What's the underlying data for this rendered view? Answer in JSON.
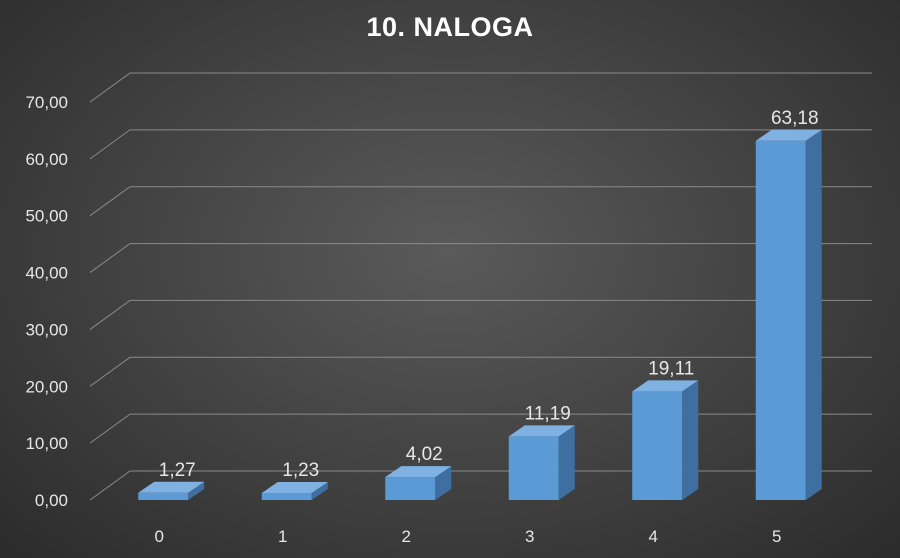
{
  "chart_data": {
    "type": "bar",
    "title": "10. NALOGA",
    "categories": [
      "0",
      "1",
      "2",
      "3",
      "4",
      "5"
    ],
    "values": [
      1.27,
      1.23,
      4.02,
      11.19,
      19.11,
      63.18
    ],
    "value_labels": [
      "1,27",
      "1,23",
      "4,02",
      "11,19",
      "19,11",
      "63,18"
    ],
    "y_ticks": [
      "0,00",
      "10,00",
      "20,00",
      "30,00",
      "40,00",
      "50,00",
      "60,00",
      "70,00"
    ],
    "ylim": [
      0,
      70
    ],
    "grid": true,
    "style": "3d-column",
    "colors": {
      "bar_front": "#5b9bd5",
      "bar_side": "#3e6fa0",
      "bar_top": "#7fb2e3",
      "gridline": "#8a8a8a"
    }
  }
}
